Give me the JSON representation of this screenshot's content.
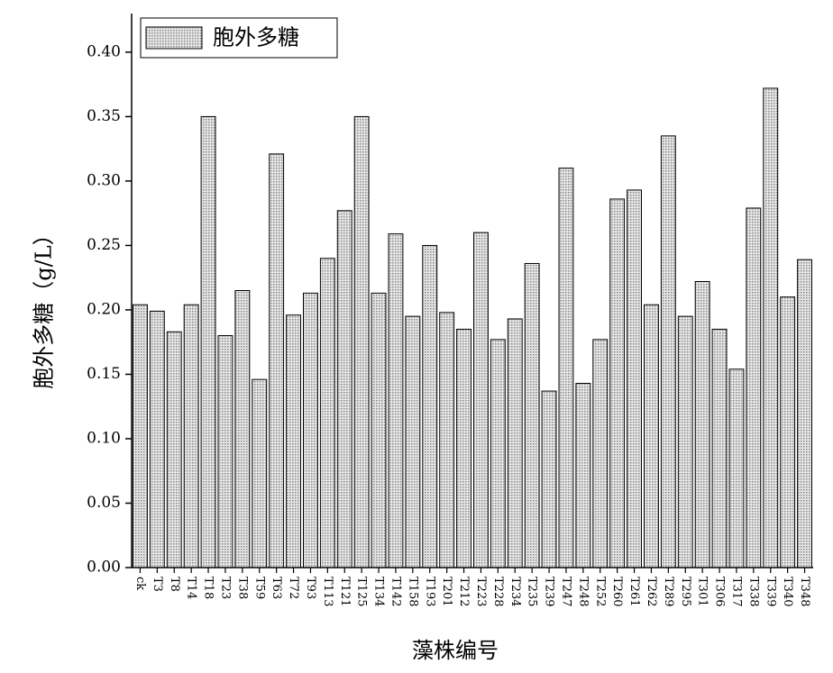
{
  "chart_data": {
    "type": "bar",
    "x_label": "藻株编号",
    "y_label": "胞外多糖（g/L）",
    "categories": [
      "ck",
      "T3",
      "T8",
      "T14",
      "T18",
      "T23",
      "T38",
      "T59",
      "T63",
      "T72",
      "T93",
      "T113",
      "T121",
      "T125",
      "T134",
      "T142",
      "T158",
      "T193",
      "T201",
      "T212",
      "T223",
      "T228",
      "T234",
      "T235",
      "T239",
      "T247",
      "T248",
      "T252",
      "T260",
      "T261",
      "T262",
      "T289",
      "T295",
      "T301",
      "T306",
      "T317",
      "T338",
      "T339",
      "T340",
      "T348"
    ],
    "series": [
      {
        "name": "胞外多糖",
        "color": "#c8c8c8",
        "values": [
          0.204,
          0.199,
          0.183,
          0.204,
          0.35,
          0.18,
          0.215,
          0.146,
          0.321,
          0.196,
          0.213,
          0.24,
          0.277,
          0.35,
          0.213,
          0.259,
          0.195,
          0.25,
          0.198,
          0.185,
          0.26,
          0.177,
          0.193,
          0.236,
          0.137,
          0.31,
          0.143,
          0.177,
          0.286,
          0.293,
          0.204,
          0.335,
          0.195,
          0.222,
          0.185,
          0.154,
          0.279,
          0.372,
          0.21,
          0.239
        ]
      }
    ],
    "ylim": [
      0,
      0.43
    ],
    "yticks": [
      {
        "value": 0,
        "label": "0.00"
      },
      {
        "value": 0.05,
        "label": "0.05"
      },
      {
        "value": 0.1,
        "label": "0.10"
      },
      {
        "value": 0.15,
        "label": "0.15"
      },
      {
        "value": 0.2,
        "label": "0.20"
      },
      {
        "value": 0.25,
        "label": "0.25"
      },
      {
        "value": 0.3,
        "label": "0.30"
      },
      {
        "value": 0.35,
        "label": "0.35"
      },
      {
        "value": 0.4,
        "label": "0.40"
      }
    ],
    "legend": "upper-left"
  }
}
